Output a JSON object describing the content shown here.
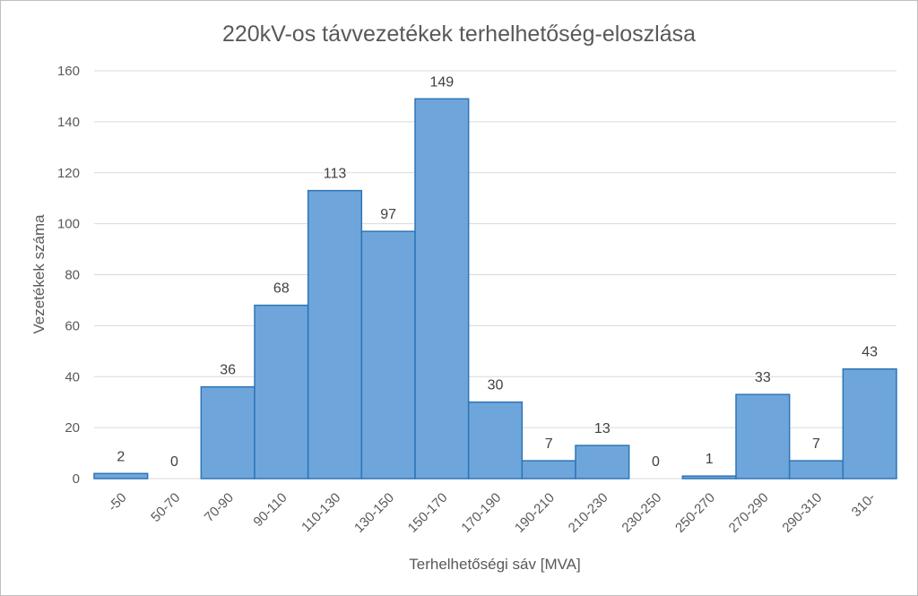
{
  "chart_data": {
    "type": "bar",
    "title": "220kV-os távvezetékek terhelhetőség-eloszlása",
    "xlabel": "Terhelhetőségi sáv [MVA]",
    "ylabel": "Vezetékek száma",
    "categories": [
      "-50",
      "50-70",
      "70-90",
      "90-110",
      "110-130",
      "130-150",
      "150-170",
      "170-190",
      "190-210",
      "210-230",
      "230-250",
      "250-270",
      "270-290",
      "290-310",
      "310-"
    ],
    "values": [
      2,
      0,
      36,
      68,
      113,
      97,
      149,
      30,
      7,
      13,
      0,
      1,
      33,
      7,
      43
    ],
    "ylim": [
      0,
      160
    ],
    "yticks": [
      0,
      20,
      40,
      60,
      80,
      100,
      120,
      140,
      160
    ],
    "grid": true,
    "legend": "none",
    "data_labels": true,
    "colors": {
      "bar_fill": "#6ea6db",
      "bar_stroke": "#2e75b6",
      "text": "#595959",
      "grid": "#d9d9d9"
    }
  }
}
